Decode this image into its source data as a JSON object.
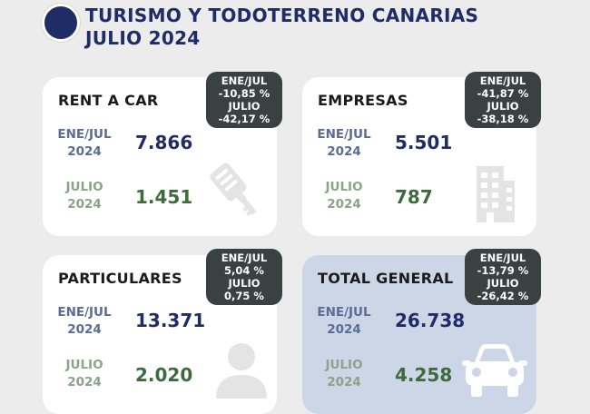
{
  "header": {
    "line1": "TURISMO Y TODOTERRENO CANARIAS",
    "line2": "JULIO 2024"
  },
  "colors": {
    "navy": "#1f2c66",
    "green": "#3e6b3c",
    "badge_bg": "#394141",
    "total_bg": "#cdd6e6"
  },
  "chart_data": {
    "type": "table",
    "title": "TURISMO Y TODOTERRENO CANARIAS JULIO 2024",
    "period_labels": {
      "ytd": [
        "ENE/JUL",
        "2024"
      ],
      "month": [
        "JULIO",
        "2024"
      ]
    },
    "cards": [
      {
        "name": "RENT A CAR",
        "ytd_value": "7.866",
        "month_value": "1.451",
        "badge": [
          "ENE/JUL",
          "-10,85 %",
          "JULIO",
          "-42,17 %"
        ],
        "icon": "car-key-icon"
      },
      {
        "name": "EMPRESAS",
        "ytd_value": "5.501",
        "month_value": "787",
        "badge": [
          "ENE/JUL",
          "-41,87 %",
          "JULIO",
          "-38,18 %"
        ],
        "icon": "building-icon"
      },
      {
        "name": "PARTICULARES",
        "ytd_value": "13.371",
        "month_value": "2.020",
        "badge": [
          "ENE/JUL",
          "5,04 %",
          "JULIO",
          "0,75 %"
        ],
        "icon": "person-icon"
      },
      {
        "name": "TOTAL GENERAL",
        "ytd_value": "26.738",
        "month_value": "4.258",
        "badge": [
          "ENE/JUL",
          "-13,79 %",
          "JULIO",
          "-26,42 %"
        ],
        "icon": "car-icon"
      }
    ]
  }
}
